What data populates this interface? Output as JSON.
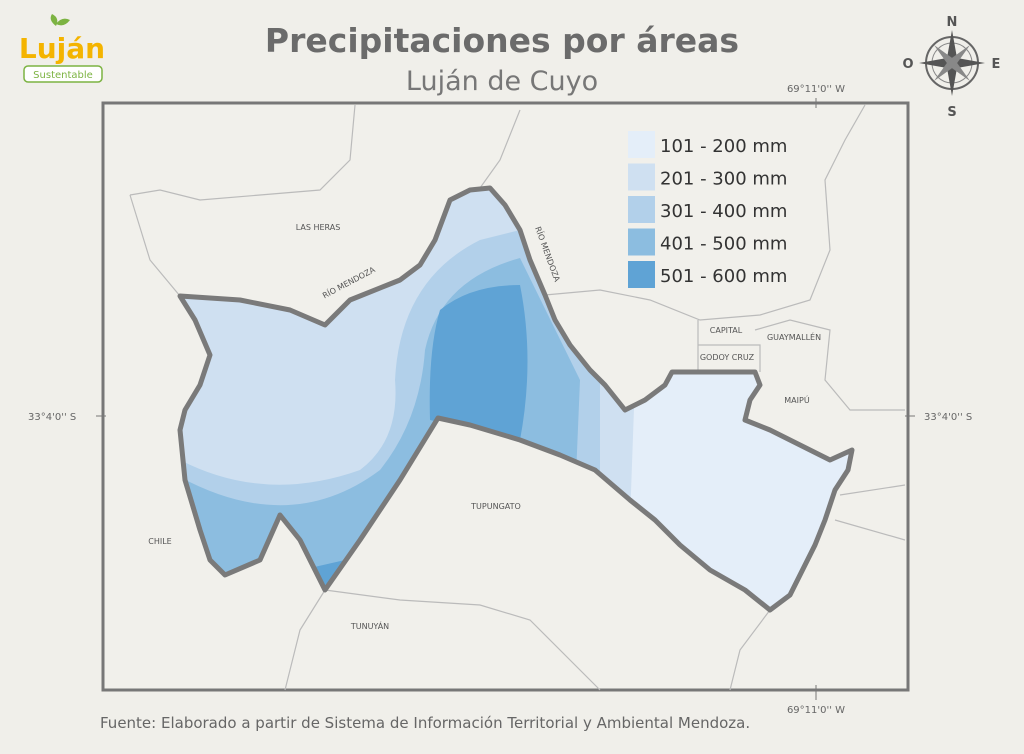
{
  "logo": {
    "name": "Luján",
    "tagline": "Sustentable"
  },
  "header": {
    "title": "Precipitaciones por áreas",
    "subtitle": "Luján de Cuyo"
  },
  "compass": {
    "north": "N",
    "west": "O",
    "east": "E",
    "south": "S"
  },
  "coordinates": {
    "top": "69°11'0'' W",
    "bottom": "69°11'0'' W",
    "left": "33°4'0'' S",
    "right": "33°4'0'' S"
  },
  "legend": [
    {
      "label": "101 - 200 mm",
      "color": "#e4eef9"
    },
    {
      "label": "201 - 300 mm",
      "color": "#cfe0f1"
    },
    {
      "label": "301 - 400 mm",
      "color": "#b2d0ea"
    },
    {
      "label": "401 - 500 mm",
      "color": "#8cbde0"
    },
    {
      "label": "501 - 600 mm",
      "color": "#5fa3d5"
    }
  ],
  "places": {
    "las_heras": "LAS HERAS",
    "rio_mendoza_west": "RÍO MENDOZA",
    "rio_mendoza_east": "RÍO MENDOZA",
    "capital": "CAPITAL",
    "guaymallen": "GUAYMALLÉN",
    "godoy_cruz": "GODOY CRUZ",
    "maipu": "MAIPÚ",
    "tupungato": "TUPUNGATO",
    "chile": "CHILE",
    "tunuyan": "TUNUYÁN"
  },
  "source": "Fuente: Elaborado a partir de Sistema de Información Territorial y Ambiental Mendoza."
}
